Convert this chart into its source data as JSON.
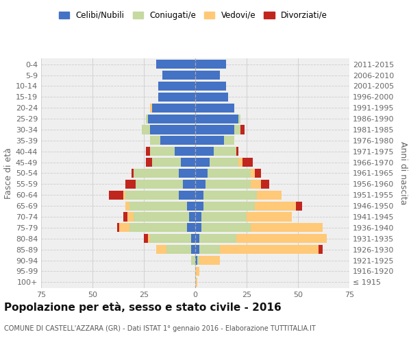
{
  "age_groups": [
    "100+",
    "95-99",
    "90-94",
    "85-89",
    "80-84",
    "75-79",
    "70-74",
    "65-69",
    "60-64",
    "55-59",
    "50-54",
    "45-49",
    "40-44",
    "35-39",
    "30-34",
    "25-29",
    "20-24",
    "15-19",
    "10-14",
    "5-9",
    "0-4"
  ],
  "birth_years": [
    "≤ 1915",
    "1916-1920",
    "1921-1925",
    "1926-1930",
    "1931-1935",
    "1936-1940",
    "1941-1945",
    "1946-1950",
    "1951-1955",
    "1956-1960",
    "1961-1965",
    "1966-1970",
    "1971-1975",
    "1976-1980",
    "1981-1985",
    "1986-1990",
    "1991-1995",
    "1996-2000",
    "2001-2005",
    "2006-2010",
    "2011-2015"
  ],
  "male_celibi": [
    0,
    0,
    0,
    2,
    2,
    4,
    3,
    4,
    8,
    6,
    8,
    7,
    10,
    17,
    22,
    23,
    21,
    18,
    18,
    16,
    19
  ],
  "male_coniugati": [
    0,
    0,
    2,
    12,
    20,
    28,
    27,
    28,
    26,
    23,
    22,
    14,
    12,
    5,
    4,
    1,
    0,
    0,
    0,
    0,
    0
  ],
  "male_vedovi": [
    0,
    0,
    0,
    5,
    1,
    5,
    3,
    2,
    1,
    0,
    0,
    0,
    0,
    0,
    0,
    0,
    1,
    0,
    0,
    0,
    0
  ],
  "male_divorziati": [
    0,
    0,
    0,
    0,
    2,
    1,
    2,
    0,
    7,
    5,
    1,
    3,
    2,
    0,
    0,
    0,
    0,
    0,
    0,
    0,
    0
  ],
  "female_nubili": [
    0,
    0,
    1,
    2,
    2,
    3,
    3,
    4,
    4,
    5,
    6,
    7,
    9,
    14,
    19,
    21,
    19,
    16,
    15,
    12,
    15
  ],
  "female_coniugate": [
    0,
    0,
    1,
    10,
    18,
    24,
    22,
    25,
    26,
    22,
    21,
    14,
    11,
    5,
    3,
    1,
    0,
    0,
    0,
    0,
    0
  ],
  "female_vedove": [
    1,
    2,
    10,
    48,
    44,
    35,
    22,
    20,
    12,
    5,
    2,
    2,
    0,
    0,
    0,
    0,
    0,
    0,
    0,
    0,
    0
  ],
  "female_divorziate": [
    0,
    0,
    0,
    2,
    0,
    0,
    0,
    3,
    0,
    4,
    3,
    5,
    1,
    0,
    2,
    0,
    0,
    0,
    0,
    0,
    0
  ],
  "color_celibi": "#4472c4",
  "color_coniugati": "#c5d9a0",
  "color_vedovi": "#ffc978",
  "color_divorziati": "#c0251e",
  "legend_labels": [
    "Celibi/Nubili",
    "Coniugati/e",
    "Vedovi/e",
    "Divorziati/e"
  ],
  "xlim": 75,
  "title": "Popolazione per età, sesso e stato civile - 2016",
  "subtitle": "COMUNE DI CASTELL'AZZARA (GR) - Dati ISTAT 1° gennaio 2016 - Elaborazione TUTTITALIA.IT",
  "ylabel_left": "Fasce di età",
  "ylabel_right": "Anni di nascita"
}
